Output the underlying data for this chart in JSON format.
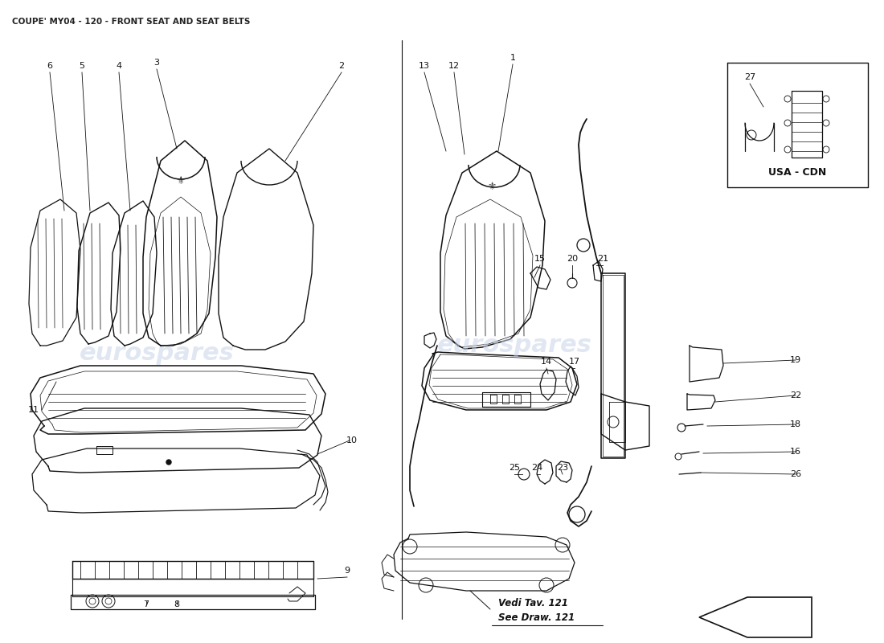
{
  "title": "COUPE' MY04 - 120 - FRONT SEAT AND SEAT BELTS",
  "title_fontsize": 7.5,
  "title_color": "#222222",
  "bg_color": "#ffffff",
  "watermark_color": "#c8d4e8",
  "line_color": "#111111",
  "fig_width": 11.0,
  "fig_height": 8.0,
  "dpi": 100,
  "inset_label": "USA - CDN",
  "vedi_text": [
    "Vedi Tav. 121",
    "See Draw. 121"
  ]
}
